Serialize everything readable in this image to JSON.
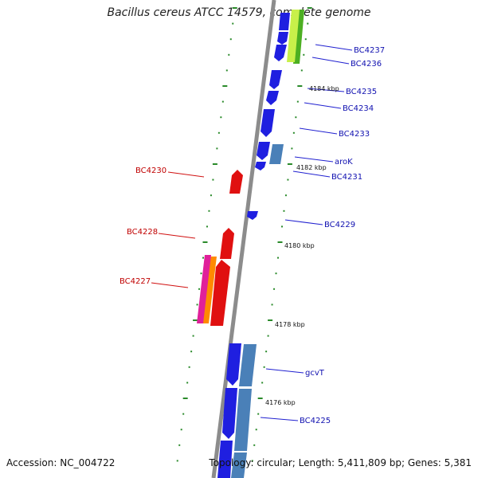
{
  "title": "Bacillus cereus ATCC 14579, complete genome",
  "accession": "Accession: NC_004722",
  "summary": "Topology: circular; Length: 5,411,809 bp; Genes: 5,381",
  "colors": {
    "backbone": "#8c8c8c",
    "forward_gene": "#1f1fe0",
    "forward_gene_alt": "#4a80b8",
    "reverse_gene": "#e01010",
    "reverse_gene_orange": "#ff8a00",
    "reverse_gene_magenta": "#e0209a",
    "tick": "#2a8a2a",
    "forward_label": "#1010b0",
    "reverse_label": "#c00000"
  },
  "scale_labels": [
    "4184 kbp",
    "4182 kbp",
    "4180 kbp",
    "4178 kbp",
    "4176 kbp"
  ],
  "forward_labels": [
    "BC4237",
    "BC4236",
    "BC4235",
    "BC4234",
    "BC4233",
    "aroK",
    "BC4231",
    "BC4229",
    "gcvT",
    "BC4225"
  ],
  "reverse_labels": [
    "BC4230",
    "BC4228",
    "BC4227"
  ]
}
